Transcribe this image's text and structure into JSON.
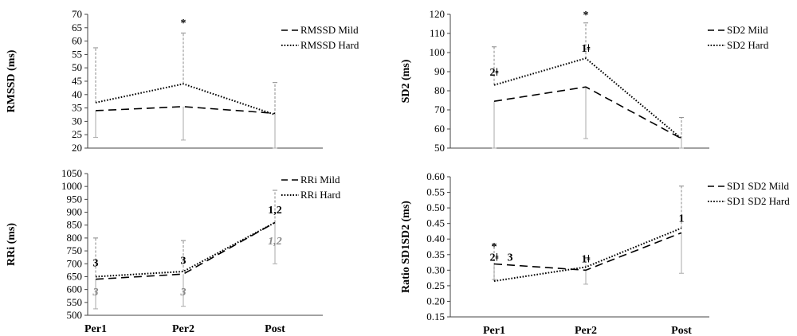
{
  "chart_data": [
    {
      "type": "line",
      "ylabel": "RMSSD (ms)",
      "xlabel": "",
      "categories": [
        "Per1",
        "Per2",
        "Post"
      ],
      "ylim": [
        20,
        70
      ],
      "yticks": [
        20,
        25,
        30,
        35,
        40,
        45,
        50,
        55,
        60,
        65,
        70
      ],
      "show_categories": false,
      "series": [
        {
          "name": "RMSSD Mild",
          "style": "dashed",
          "values": [
            34,
            35.5,
            33
          ],
          "err_low": [
            24,
            23,
            20
          ],
          "err_high": null
        },
        {
          "name": "RMSSD Hard",
          "style": "dotted",
          "values": [
            37,
            44,
            32.5
          ],
          "err_low": null,
          "err_high": [
            57.5,
            63,
            44.5
          ]
        }
      ],
      "annotations": [
        {
          "text": "*",
          "x": "Per2",
          "y": 65.5,
          "color": "black"
        }
      ]
    },
    {
      "type": "line",
      "ylabel": "SD2 (ms)",
      "xlabel": "",
      "categories": [
        "Per1",
        "Per2",
        "Post"
      ],
      "ylim": [
        50,
        120
      ],
      "yticks": [
        50,
        60,
        70,
        80,
        90,
        100,
        110,
        120
      ],
      "show_categories": false,
      "series": [
        {
          "name": "SD2 Mild",
          "style": "dashed",
          "values": [
            74.5,
            82,
            55
          ],
          "err_low": [
            50,
            55,
            50
          ],
          "err_high": null
        },
        {
          "name": "SD2 Hard",
          "style": "dotted",
          "values": [
            83,
            97,
            55
          ],
          "err_low": null,
          "err_high": [
            103,
            115.5,
            66
          ]
        }
      ],
      "annotations": [
        {
          "text": "2ǂ",
          "x": "Per1",
          "y": 88,
          "color": "black"
        },
        {
          "text": "1ǂ",
          "x": "Per2",
          "y": 100.5,
          "color": "black"
        },
        {
          "text": "*",
          "x": "Per2",
          "y": 118,
          "color": "black"
        }
      ]
    },
    {
      "type": "line",
      "ylabel": "RRi (ms)",
      "xlabel": "",
      "categories": [
        "Per1",
        "Per2",
        "Post"
      ],
      "ylim": [
        500,
        1050
      ],
      "yticks": [
        500,
        550,
        600,
        650,
        700,
        750,
        800,
        850,
        900,
        950,
        1000,
        1050
      ],
      "show_categories": true,
      "series": [
        {
          "name": "RRi Mild",
          "style": "dashed",
          "values": [
            640,
            660,
            860
          ],
          "err_low": [
            525,
            535,
            700
          ],
          "err_high": null
        },
        {
          "name": "RRi Hard",
          "style": "dotted",
          "values": [
            650,
            670,
            860
          ],
          "err_low": null,
          "err_high": [
            800,
            790,
            985
          ]
        }
      ],
      "annotations": [
        {
          "text": "3",
          "x": "Per1",
          "y": 690,
          "color": "black"
        },
        {
          "text": "3",
          "x": "Per2",
          "y": 700,
          "color": "black"
        },
        {
          "text": "1,2",
          "x": "Post",
          "y": 895,
          "color": "black"
        },
        {
          "text": "3",
          "x": "Per1",
          "y": 578,
          "color": "gray"
        },
        {
          "text": "3",
          "x": "Per2",
          "y": 578,
          "color": "gray"
        },
        {
          "text": "1,2",
          "x": "Post",
          "y": 775,
          "color": "gray"
        }
      ]
    },
    {
      "type": "line",
      "ylabel": "Ratio SD1SD2 (ms)",
      "xlabel": "",
      "categories": [
        "Per1",
        "Per2",
        "Post"
      ],
      "ylim": [
        0.15,
        0.6
      ],
      "yticks": [
        "0.15",
        "0.20",
        "0.25",
        "0.30",
        "0.35",
        "0.40",
        "0.45",
        "0.50",
        "0.55",
        "0.60"
      ],
      "show_categories": true,
      "series": [
        {
          "name": "SD1 SD2 Mild",
          "style": "dashed",
          "values": [
            0.32,
            0.3,
            0.42
          ],
          "err_low": [
            0.27,
            0.255,
            0.29
          ],
          "err_high": null
        },
        {
          "name": "SD1 SD2 Hard",
          "style": "dotted",
          "values": [
            0.265,
            0.31,
            0.435
          ],
          "err_low": null,
          "err_high": [
            0.38,
            0.34,
            0.57
          ]
        }
      ],
      "annotations": [
        {
          "text": "*",
          "x": "Per1",
          "y": 0.365,
          "color": "black"
        },
        {
          "text": "2ǂ",
          "x": "Per1",
          "y": 0.33,
          "color": "black"
        },
        {
          "text": "3",
          "x": "Per1",
          "y": 0.33,
          "dx": 20,
          "color": "black"
        },
        {
          "text": "1ǂ",
          "x": "Per2",
          "y": 0.325,
          "color": "black"
        },
        {
          "text": "1",
          "x": "Post",
          "y": 0.455,
          "color": "black"
        }
      ]
    }
  ]
}
